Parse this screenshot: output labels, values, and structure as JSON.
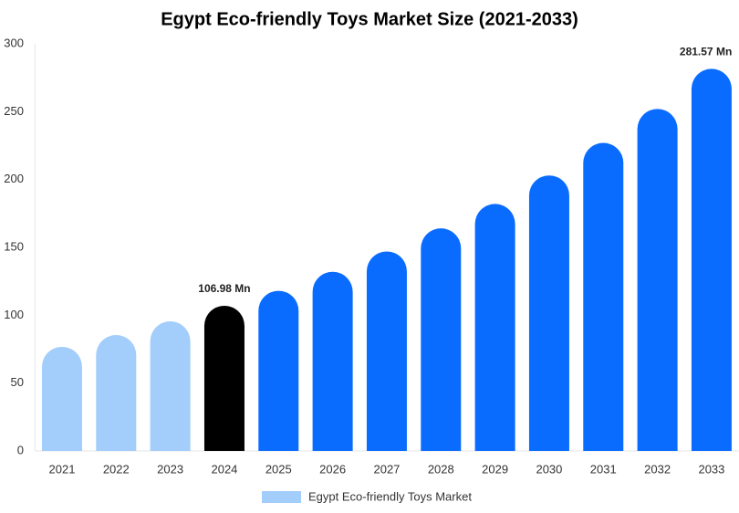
{
  "chart_data": {
    "type": "bar",
    "title": "Egypt Eco-friendly Toys Market Size (2021-2033)",
    "categories": [
      "2021",
      "2022",
      "2023",
      "2024",
      "2025",
      "2026",
      "2027",
      "2028",
      "2029",
      "2030",
      "2031",
      "2032",
      "2033"
    ],
    "series": [
      {
        "name": "Egypt Eco-friendly Toys Market",
        "color": "#a3cdfa",
        "values": [
          76.7,
          85.4,
          95.5,
          106.98,
          118,
          132,
          147,
          164,
          182,
          203,
          227,
          252,
          281.57
        ],
        "value_labels": [
          null,
          null,
          null,
          "106.98 Mn",
          null,
          null,
          null,
          null,
          null,
          null,
          null,
          null,
          "281.57 Mn"
        ],
        "colors": [
          "#a3cdfa",
          "#a3cdfa",
          "#a3cdfa",
          "#000000",
          "#0a6cff",
          "#0a6cff",
          "#0a6cff",
          "#0a6cff",
          "#0a6cff",
          "#0a6cff",
          "#0a6cff",
          "#0a6cff",
          "#0a6cff"
        ]
      }
    ],
    "ylim": [
      0,
      300
    ],
    "yticks": [
      0,
      50,
      100,
      150,
      200,
      250,
      300
    ],
    "grid": false
  }
}
